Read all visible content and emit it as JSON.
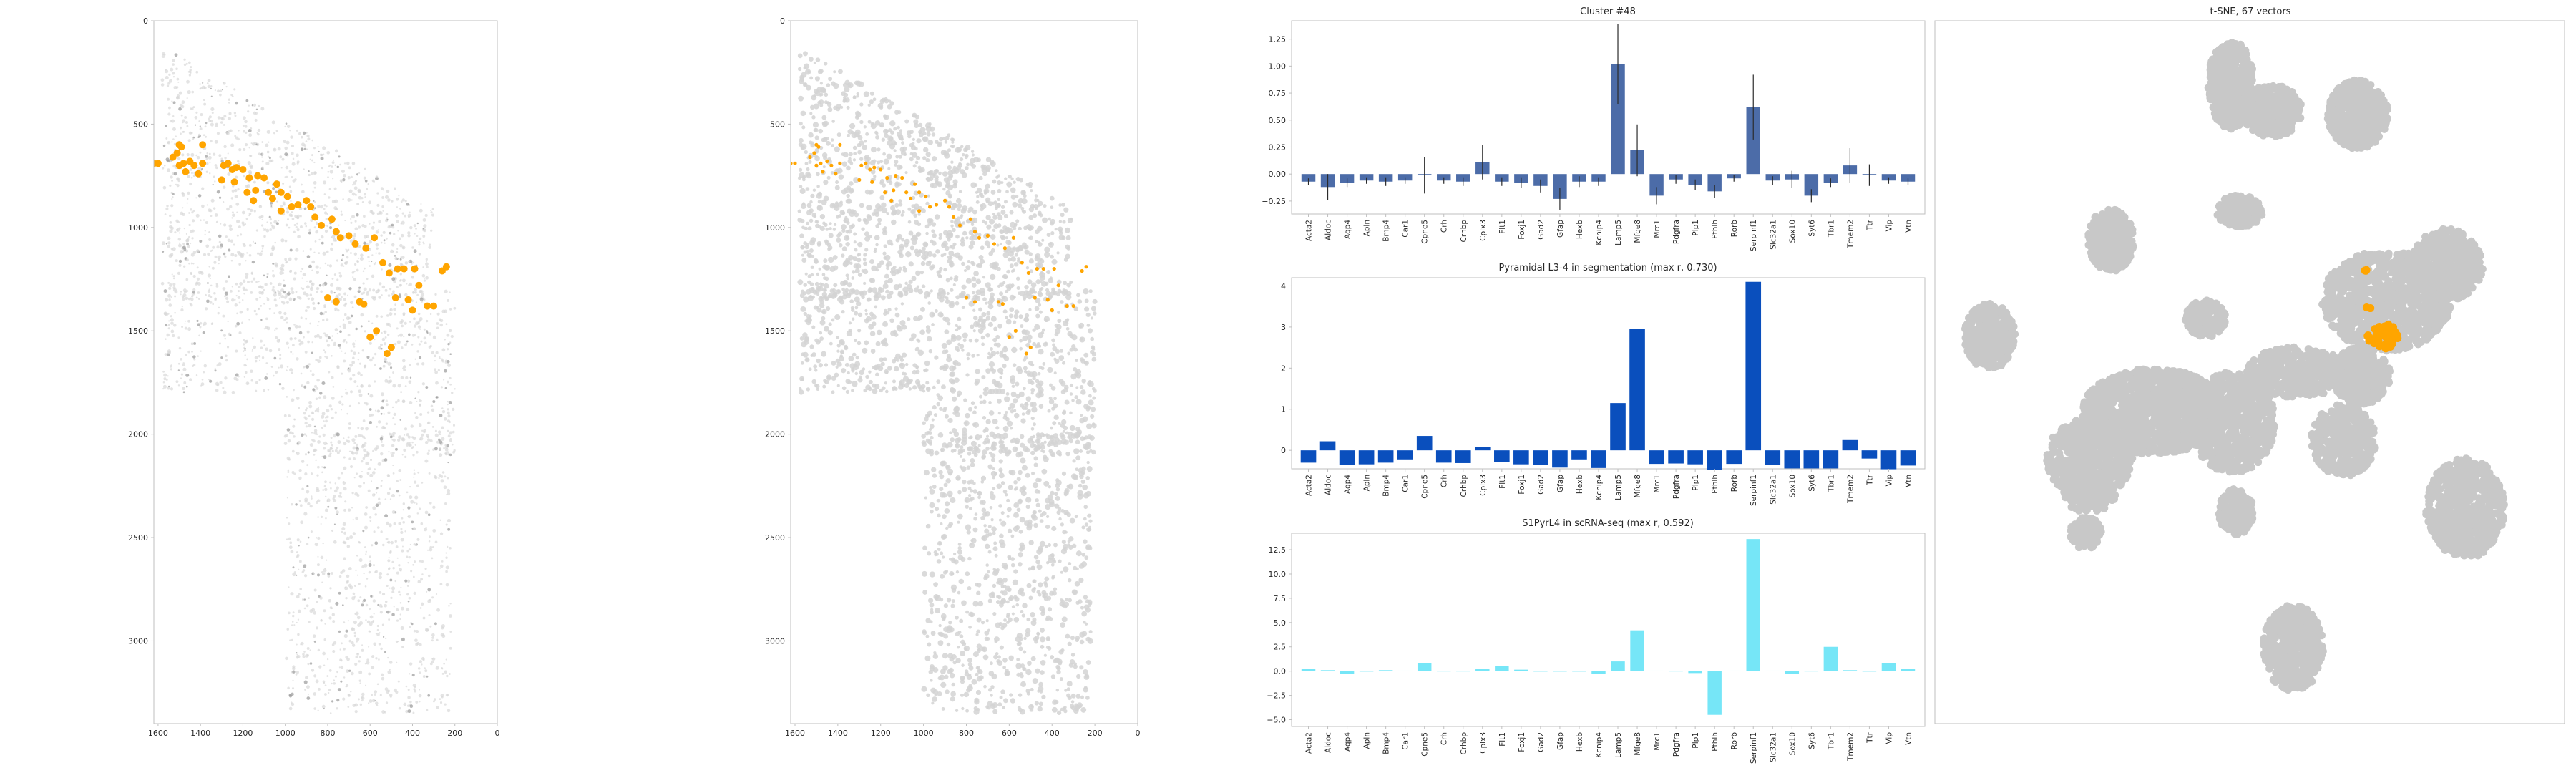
{
  "colors": {
    "highlight": "#ffa500",
    "tissue": "#d3d3d3",
    "cluster_bar": "#4c6ca8",
    "segmentation_bar": "#0a4fbd",
    "scrnaseq_bar": "#76e6f7",
    "tsne_point": "#c8c8c8",
    "axis": "#bfbfbf"
  },
  "genes": [
    "Acta2",
    "Aldoc",
    "Aqp4",
    "Apln",
    "Bmp4",
    "Car1",
    "Cpne5",
    "Crh",
    "Crhbp",
    "Cplx3",
    "Flt1",
    "Foxj1",
    "Gad2",
    "Gfap",
    "Hexb",
    "Kcnip4",
    "Lamp5",
    "Mfge8",
    "Mrc1",
    "Pdgfra",
    "Plp1",
    "Pthlh",
    "Rorb",
    "Serpinf1",
    "Slc32a1",
    "Sox10",
    "Syt6",
    "Tbr1",
    "Tmem2",
    "Ttr",
    "Vip",
    "Vtn"
  ],
  "chart_data": [
    {
      "type": "scatter",
      "panel": "spatial-intensity",
      "x_ticks": [
        "1600",
        "1400",
        "1200",
        "1000",
        "800",
        "600",
        "400",
        "200",
        "0"
      ],
      "y_ticks": [
        "0",
        "500",
        "1000",
        "1500",
        "2000",
        "2500",
        "3000"
      ],
      "xlim": [
        1620,
        0
      ],
      "ylim": [
        3400,
        0
      ],
      "highlight_points": [
        [
          1620,
          690
        ],
        [
          1600,
          690
        ],
        [
          1530,
          660
        ],
        [
          1510,
          640
        ],
        [
          1500,
          600
        ],
        [
          1490,
          610
        ],
        [
          1500,
          700
        ],
        [
          1480,
          690
        ],
        [
          1470,
          730
        ],
        [
          1450,
          680
        ],
        [
          1430,
          700
        ],
        [
          1410,
          740
        ],
        [
          1390,
          690
        ],
        [
          1290,
          700
        ],
        [
          1270,
          690
        ],
        [
          1250,
          720
        ],
        [
          1230,
          710
        ],
        [
          1200,
          720
        ],
        [
          1170,
          760
        ],
        [
          1140,
          820
        ],
        [
          1130,
          750
        ],
        [
          1100,
          760
        ],
        [
          1080,
          830
        ],
        [
          1060,
          860
        ],
        [
          1040,
          790
        ],
        [
          1020,
          830
        ],
        [
          990,
          850
        ],
        [
          970,
          900
        ],
        [
          940,
          890
        ],
        [
          900,
          870
        ],
        [
          880,
          900
        ],
        [
          860,
          950
        ],
        [
          830,
          990
        ],
        [
          780,
          960
        ],
        [
          760,
          1020
        ],
        [
          740,
          1050
        ],
        [
          700,
          1040
        ],
        [
          670,
          1080
        ],
        [
          620,
          1100
        ],
        [
          580,
          1050
        ],
        [
          540,
          1170
        ],
        [
          510,
          1220
        ],
        [
          470,
          1200
        ],
        [
          440,
          1200
        ],
        [
          390,
          1200
        ],
        [
          370,
          1280
        ],
        [
          330,
          1380
        ],
        [
          300,
          1380
        ],
        [
          260,
          1210
        ],
        [
          240,
          1190
        ],
        [
          800,
          1340
        ],
        [
          760,
          1360
        ],
        [
          650,
          1360
        ],
        [
          630,
          1370
        ],
        [
          480,
          1340
        ],
        [
          420,
          1350
        ],
        [
          400,
          1400
        ],
        [
          500,
          1580
        ],
        [
          520,
          1610
        ],
        [
          570,
          1500
        ],
        [
          600,
          1530
        ],
        [
          1390,
          600
        ],
        [
          1300,
          770
        ],
        [
          1240,
          780
        ],
        [
          1180,
          830
        ],
        [
          1150,
          870
        ],
        [
          1020,
          920
        ]
      ]
    },
    {
      "type": "scatter",
      "panel": "spatial-segmentation",
      "x_ticks": [
        "1600",
        "1400",
        "1200",
        "1000",
        "800",
        "600",
        "400",
        "200",
        "0"
      ],
      "y_ticks": [
        "0",
        "500",
        "1000",
        "1500",
        "2000",
        "2500",
        "3000"
      ],
      "xlim": [
        1620,
        0
      ],
      "ylim": [
        3400,
        0
      ]
    },
    {
      "type": "bar",
      "title": "Cluster #48",
      "ylim": [
        -0.37,
        1.42
      ],
      "y_ticks": [
        -0.25,
        0.0,
        0.25,
        0.5,
        0.75,
        1.0,
        1.25
      ],
      "y_tick_labels": [
        "−0.25",
        "0.00",
        "0.25",
        "0.50",
        "0.75",
        "1.00",
        "1.25"
      ],
      "values": [
        -0.07,
        -0.12,
        -0.08,
        -0.06,
        -0.07,
        -0.06,
        -0.01,
        -0.06,
        -0.07,
        0.11,
        -0.07,
        -0.08,
        -0.11,
        -0.23,
        -0.07,
        -0.07,
        1.02,
        0.22,
        -0.2,
        -0.05,
        -0.1,
        -0.16,
        -0.04,
        0.62,
        -0.06,
        -0.05,
        -0.2,
        -0.08,
        0.08,
        -0.01,
        -0.06,
        -0.07
      ],
      "errors": [
        0.03,
        0.12,
        0.04,
        0.03,
        0.04,
        0.03,
        0.17,
        0.03,
        0.04,
        0.16,
        0.04,
        0.05,
        0.06,
        0.1,
        0.05,
        0.04,
        0.37,
        0.24,
        0.08,
        0.04,
        0.05,
        0.06,
        0.03,
        0.3,
        0.04,
        0.08,
        0.06,
        0.04,
        0.16,
        0.1,
        0.03,
        0.03
      ]
    },
    {
      "type": "bar",
      "title": "Pyramidal L3-4 in segmentation (max r, 0.730)",
      "ylim": [
        -0.45,
        4.2
      ],
      "y_ticks": [
        0,
        1,
        2,
        3,
        4
      ],
      "y_tick_labels": [
        "0",
        "1",
        "2",
        "3",
        "4"
      ],
      "values": [
        -0.3,
        0.22,
        -0.35,
        -0.34,
        -0.3,
        -0.22,
        0.35,
        -0.3,
        -0.31,
        0.08,
        -0.28,
        -0.34,
        -0.36,
        -0.42,
        -0.22,
        -0.43,
        1.15,
        2.95,
        -0.33,
        -0.32,
        -0.34,
        -0.48,
        -0.33,
        4.1,
        -0.35,
        -0.44,
        -0.44,
        -0.44,
        0.25,
        -0.2,
        -0.46,
        -0.37
      ]
    },
    {
      "type": "bar",
      "title": "S1PyrL4 in scRNA-seq (max r, 0.592)",
      "ylim": [
        -5.7,
        14.2
      ],
      "y_ticks": [
        -5.0,
        -2.5,
        0.0,
        2.5,
        5.0,
        7.5,
        10.0,
        12.5
      ],
      "y_tick_labels": [
        "−5.0",
        "−2.5",
        "0.0",
        "2.5",
        "5.0",
        "7.5",
        "10.0",
        "12.5"
      ],
      "values": [
        0.25,
        0.1,
        -0.25,
        -0.05,
        0.1,
        0.05,
        0.85,
        0.0,
        0.0,
        0.2,
        0.55,
        0.15,
        -0.05,
        -0.05,
        -0.05,
        -0.3,
        1.0,
        4.2,
        0.05,
        0.0,
        -0.2,
        -4.5,
        0.05,
        13.6,
        0.05,
        -0.25,
        0.0,
        2.5,
        0.1,
        -0.05,
        0.85,
        0.2
      ]
    },
    {
      "type": "scatter",
      "title": "t-SNE, 67 vectors"
    }
  ]
}
